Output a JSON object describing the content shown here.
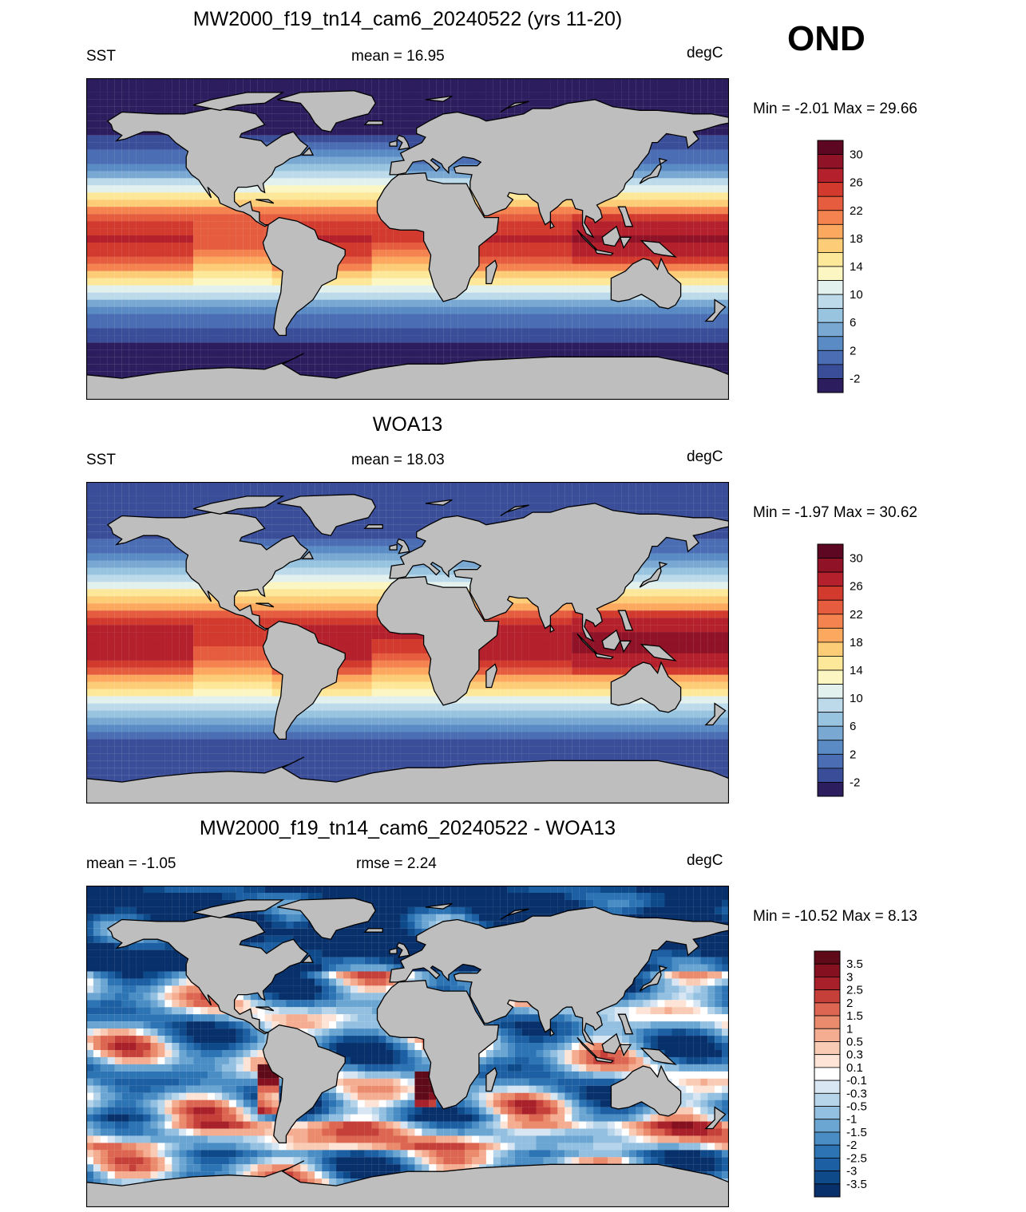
{
  "season": "OND",
  "panels": [
    {
      "title": "MW2000_f19_tn14_cam6_20240522 (yrs 11-20)",
      "left": "SST",
      "center": "mean =  16.95",
      "right": "degC",
      "minmax": "Min =  -2.01 Max =  29.66",
      "colorbar_labels": [
        "30",
        "26",
        "22",
        "18",
        "14",
        "10",
        "6",
        "2",
        "-2"
      ]
    },
    {
      "title": "WOA13",
      "left": "SST",
      "center": "mean =  18.03",
      "right": "degC",
      "minmax": "Min =  -1.97 Max =  30.62",
      "colorbar_labels": [
        "30",
        "26",
        "22",
        "18",
        "14",
        "10",
        "6",
        "2",
        "-2"
      ]
    },
    {
      "title": "MW2000_f19_tn14_cam6_20240522 - WOA13",
      "left": "mean =  -1.05",
      "center": "rmse =   2.24",
      "right": "degC",
      "minmax": "Min = -10.52 Max =   8.13",
      "colorbar_labels": [
        "3.5",
        "3",
        "2.5",
        "2",
        "1.5",
        "1",
        "0.5",
        "0.3",
        "0.1",
        "-0.1",
        "-0.3",
        "-0.5",
        "-1",
        "-1.5",
        "-2",
        "-2.5",
        "-3",
        "-3.5"
      ]
    }
  ],
  "chart_data": [
    {
      "type": "heatmap",
      "title": "MW2000_f19_tn14_cam6_20240522 (yrs 11-20)",
      "variable": "SST",
      "units": "degC",
      "mean": 16.95,
      "min": -2.01,
      "max": 29.66,
      "colorbar_levels": [
        -2,
        0,
        2,
        4,
        6,
        8,
        10,
        12,
        14,
        16,
        18,
        20,
        22,
        24,
        26,
        28,
        30
      ],
      "colorbar_colors": [
        "#2c1d5e",
        "#3a4d98",
        "#4a6db3",
        "#5a8bc4",
        "#79a8d3",
        "#98c4e0",
        "#bcdaea",
        "#e3f1ee",
        "#fbf6c2",
        "#fde89a",
        "#fdcc76",
        "#fca95f",
        "#f4834f",
        "#e55d3e",
        "#d23a2e",
        "#b4202b",
        "#8f1227",
        "#5e0722"
      ]
    },
    {
      "type": "heatmap",
      "title": "WOA13",
      "variable": "SST",
      "units": "degC",
      "mean": 18.03,
      "min": -1.97,
      "max": 30.62,
      "colorbar_levels": [
        -2,
        0,
        2,
        4,
        6,
        8,
        10,
        12,
        14,
        16,
        18,
        20,
        22,
        24,
        26,
        28,
        30
      ],
      "colorbar_colors": [
        "#2c1d5e",
        "#3a4d98",
        "#4a6db3",
        "#5a8bc4",
        "#79a8d3",
        "#98c4e0",
        "#bcdaea",
        "#e3f1ee",
        "#fbf6c2",
        "#fde89a",
        "#fdcc76",
        "#fca95f",
        "#f4834f",
        "#e55d3e",
        "#d23a2e",
        "#b4202b",
        "#8f1227",
        "#5e0722"
      ]
    },
    {
      "type": "heatmap",
      "title": "MW2000_f19_tn14_cam6_20240522 - WOA13",
      "units": "degC",
      "mean": -1.05,
      "rmse": 2.24,
      "min": -10.52,
      "max": 8.13,
      "colorbar_levels": [
        -3.5,
        -3,
        -2.5,
        -2,
        -1.5,
        -1,
        -0.5,
        -0.3,
        -0.1,
        0.1,
        0.3,
        0.5,
        1,
        1.5,
        2,
        2.5,
        3,
        3.5
      ],
      "colorbar_colors": [
        "#08306b",
        "#0e4a8a",
        "#1c5fa2",
        "#2d74b5",
        "#4a8dc5",
        "#6ba6d3",
        "#93c0e0",
        "#b6d4ea",
        "#d7e6f2",
        "#ffffff",
        "#fde4d6",
        "#f9cbb4",
        "#f4ad90",
        "#eb8b6d",
        "#dc6651",
        "#c6403a",
        "#a8202a",
        "#85101f",
        "#5e0a18"
      ]
    }
  ]
}
